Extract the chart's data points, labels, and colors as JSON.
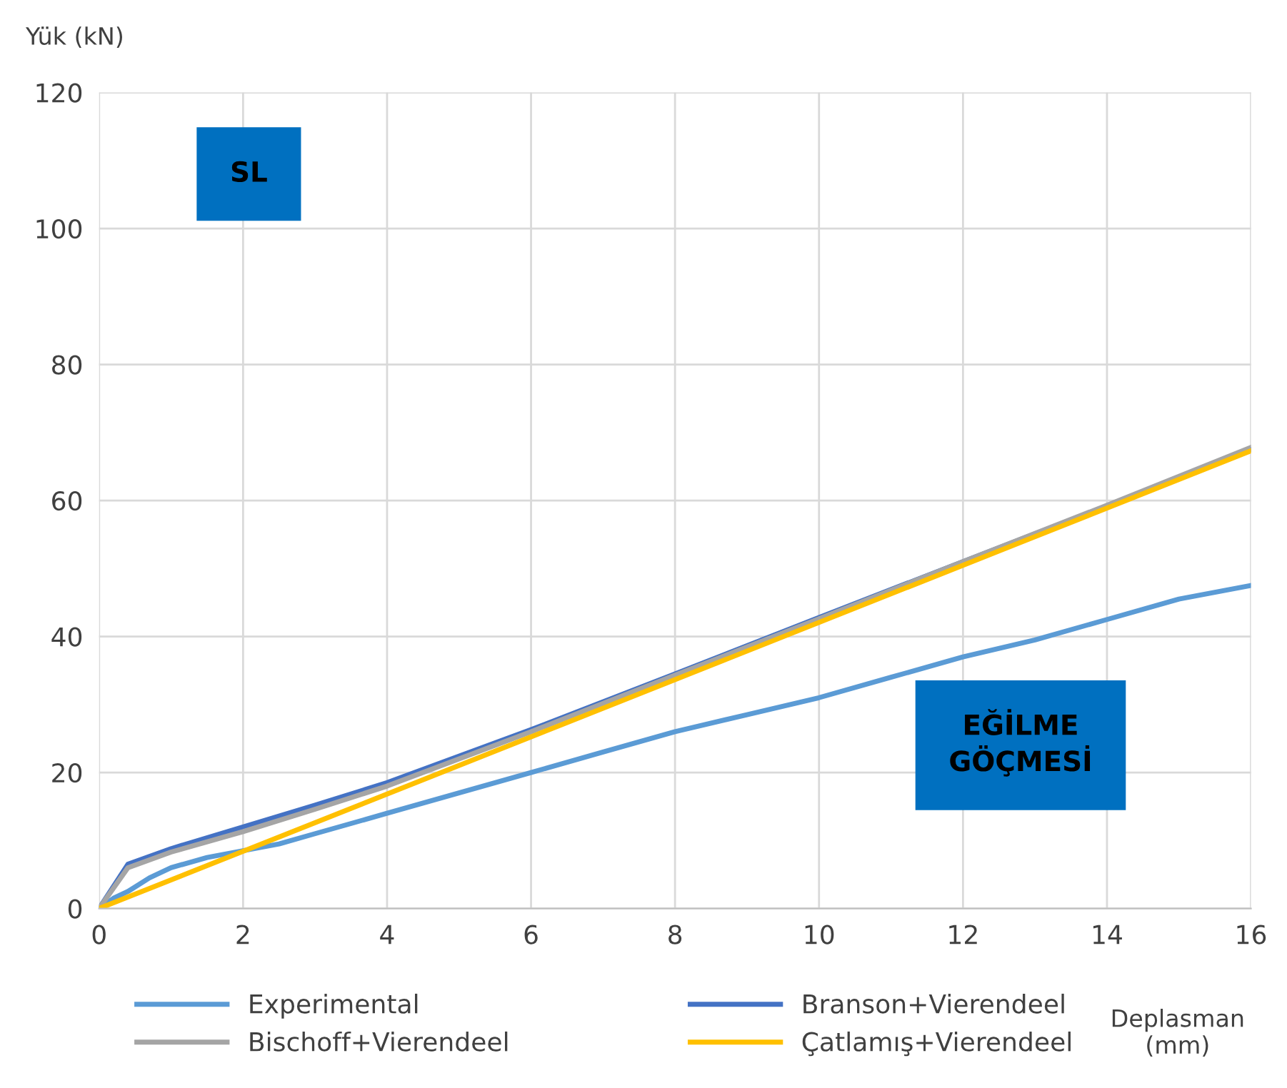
{
  "chart_data": {
    "type": "line",
    "xlabel": "Deplasman\n(mm)",
    "ylabel": "Yük (kN)",
    "xlim": [
      0,
      16
    ],
    "xticks": [
      0,
      2,
      4,
      6,
      8,
      10,
      12,
      14,
      16
    ],
    "ylim": [
      0,
      120
    ],
    "yticks": [
      0,
      20,
      40,
      60,
      80,
      100,
      120
    ],
    "grid": true,
    "legend": "bottom",
    "marker": "none",
    "line_style": "solid",
    "annotations": [
      "SL",
      "EĞİLME\nGÖÇMESİ"
    ],
    "series": [
      {
        "name": "Experimental",
        "color": "#5b9bd5",
        "x": [
          0,
          0.2,
          0.4,
          0.7,
          1,
          1.5,
          2,
          2.5,
          3,
          3.5,
          4,
          5,
          6,
          7,
          8,
          9,
          10,
          11,
          12,
          13,
          14,
          15,
          16
        ],
        "values": [
          0,
          1.5,
          2.5,
          4.5,
          6,
          7.5,
          8.5,
          9.5,
          11,
          12.5,
          14,
          17,
          20,
          23,
          26,
          28.5,
          31,
          34,
          37,
          39.5,
          42.5,
          45.5,
          47.5
        ]
      },
      {
        "name": "Branson+Vierendeel",
        "color": "#4472c4",
        "x": [
          0,
          0.4,
          1,
          2,
          3,
          4,
          6,
          8,
          10,
          12,
          14,
          16
        ],
        "values": [
          0,
          6.5,
          8.8,
          12,
          15.2,
          18.5,
          26.3,
          34.5,
          42.8,
          51,
          59.2,
          67.5
        ]
      },
      {
        "name": "Bischoff+Vierendeel",
        "color": "#a5a5a5",
        "x": [
          0,
          0.4,
          1,
          2,
          3,
          4,
          6,
          8,
          10,
          12,
          14,
          16
        ],
        "values": [
          0,
          6,
          8.3,
          11.3,
          14.6,
          18,
          26,
          34.3,
          42.6,
          51,
          59.3,
          67.8
        ]
      },
      {
        "name": "Çatlamış+Vierendeel",
        "color": "#ffc000",
        "x": [
          0,
          16
        ],
        "values": [
          0,
          67.3
        ]
      }
    ]
  }
}
